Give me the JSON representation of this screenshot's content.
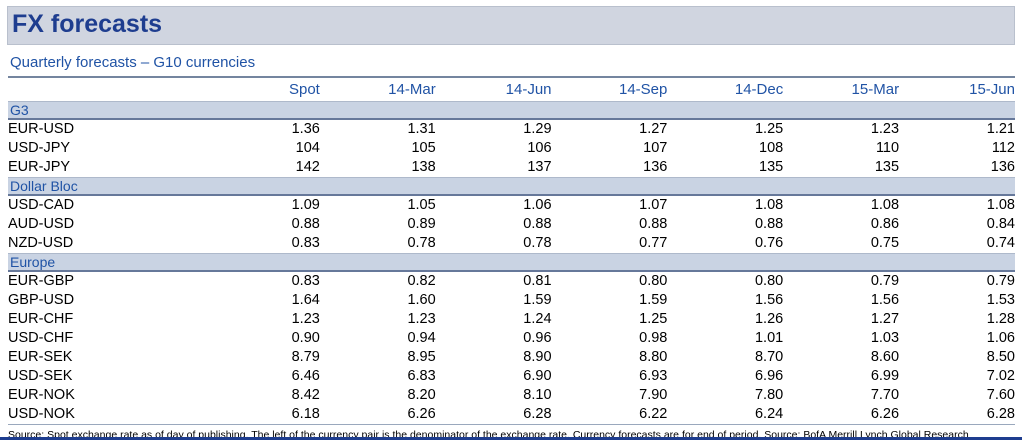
{
  "page": {
    "title": "FX forecasts",
    "subtitle": "Quarterly forecasts – G10 currencies",
    "source_note": "Source: Spot exchange rate as of day of publishing. The left of the currency pair is the denominator of the exchange rate. Currency forecasts are for end of period. Source: BofA Merrill Lynch Global Research"
  },
  "colors": {
    "title_navy": "#1e3d8f",
    "heading_blue": "#2053a5",
    "title_band_bg": "#d0d5e0",
    "section_band_bg": "#c9d3e3",
    "body_text": "#000000",
    "rule_dark": "#66789a",
    "rule_light": "#aeb9cb"
  },
  "chart_data": {
    "type": "table",
    "title": "Quarterly forecasts – G10 currencies",
    "columns": [
      "",
      "Spot",
      "14-Mar",
      "14-Jun",
      "14-Sep",
      "14-Dec",
      "15-Mar",
      "15-Jun"
    ],
    "sections": [
      {
        "label": "G3",
        "rows": [
          {
            "pair": "EUR-USD",
            "values": [
              "1.36",
              "1.31",
              "1.29",
              "1.27",
              "1.25",
              "1.23",
              "1.21"
            ]
          },
          {
            "pair": "USD-JPY",
            "values": [
              "104",
              "105",
              "106",
              "107",
              "108",
              "110",
              "112"
            ]
          },
          {
            "pair": "EUR-JPY",
            "values": [
              "142",
              "138",
              "137",
              "136",
              "135",
              "135",
              "136"
            ]
          }
        ]
      },
      {
        "label": "Dollar Bloc",
        "rows": [
          {
            "pair": "USD-CAD",
            "values": [
              "1.09",
              "1.05",
              "1.06",
              "1.07",
              "1.08",
              "1.08",
              "1.08"
            ]
          },
          {
            "pair": "AUD-USD",
            "values": [
              "0.88",
              "0.89",
              "0.88",
              "0.88",
              "0.88",
              "0.86",
              "0.84"
            ]
          },
          {
            "pair": "NZD-USD",
            "values": [
              "0.83",
              "0.78",
              "0.78",
              "0.77",
              "0.76",
              "0.75",
              "0.74"
            ]
          }
        ]
      },
      {
        "label": "Europe",
        "rows": [
          {
            "pair": "EUR-GBP",
            "values": [
              "0.83",
              "0.82",
              "0.81",
              "0.80",
              "0.80",
              "0.79",
              "0.79"
            ]
          },
          {
            "pair": "GBP-USD",
            "values": [
              "1.64",
              "1.60",
              "1.59",
              "1.59",
              "1.56",
              "1.56",
              "1.53"
            ]
          },
          {
            "pair": "EUR-CHF",
            "values": [
              "1.23",
              "1.23",
              "1.24",
              "1.25",
              "1.26",
              "1.27",
              "1.28"
            ]
          },
          {
            "pair": "USD-CHF",
            "values": [
              "0.90",
              "0.94",
              "0.96",
              "0.98",
              "1.01",
              "1.03",
              "1.06"
            ]
          },
          {
            "pair": "EUR-SEK",
            "values": [
              "8.79",
              "8.95",
              "8.90",
              "8.80",
              "8.70",
              "8.60",
              "8.50"
            ]
          },
          {
            "pair": "USD-SEK",
            "values": [
              "6.46",
              "6.83",
              "6.90",
              "6.93",
              "6.96",
              "6.99",
              "7.02"
            ]
          },
          {
            "pair": "EUR-NOK",
            "values": [
              "8.42",
              "8.20",
              "8.10",
              "7.90",
              "7.80",
              "7.70",
              "7.60"
            ]
          },
          {
            "pair": "USD-NOK",
            "values": [
              "6.18",
              "6.26",
              "6.28",
              "6.22",
              "6.24",
              "6.26",
              "6.28"
            ]
          }
        ]
      }
    ]
  }
}
